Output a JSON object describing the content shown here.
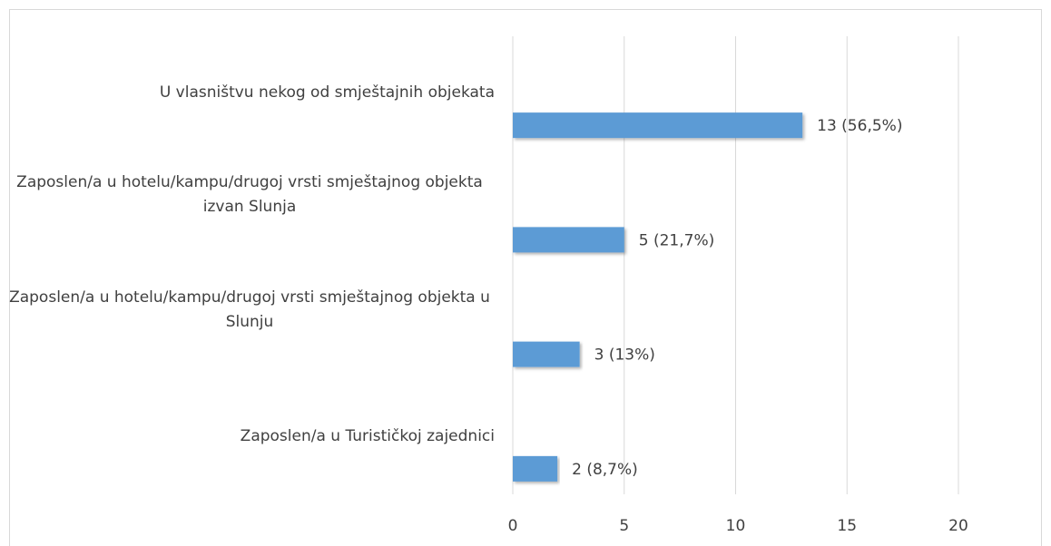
{
  "chart_data": {
    "type": "bar",
    "orientation": "horizontal",
    "categories": [
      "U vlasništvu nekog od smještajnih objekata",
      "Zaposlen/a u hotelu/kampu/drugoj vrsti smještajnog objekta izvan Slunja",
      "Zaposlen/a u hotelu/kampu/drugoj vrsti smještajnog objekta u Slunju",
      "Zaposlen/a u Turističkoj zajednici"
    ],
    "values": [
      13,
      5,
      3,
      2
    ],
    "value_labels": [
      "13 (56,5%)",
      "5 (21,7%)",
      "3 (13%)",
      "2 (8,7%)"
    ],
    "color": "#5b9bd5",
    "xlim": [
      0,
      20
    ],
    "xticks": [
      0,
      5,
      10,
      15,
      20
    ],
    "grid": true
  }
}
